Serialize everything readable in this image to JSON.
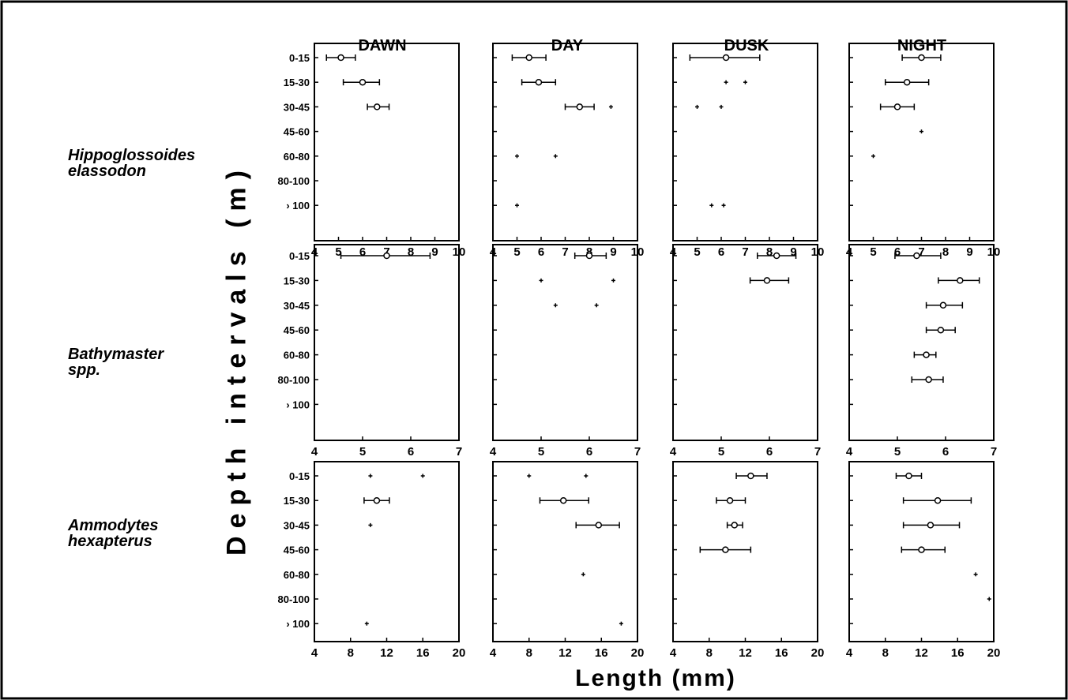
{
  "figure": {
    "periods": [
      "DAWN",
      "DAY",
      "DUSK",
      "NIGHT"
    ],
    "species": [
      {
        "line1": "Hippoglossoides",
        "line2": "elassodon"
      },
      {
        "line1": "Bathymaster",
        "line2": "spp."
      },
      {
        "line1": "Ammodytes",
        "line2": "hexapterus"
      }
    ],
    "ylabel": "Depth intervals (m)",
    "xlabel": "Length (mm)"
  },
  "chart_data": [
    {
      "type": "scatter",
      "subtype": "mean with horizontal range bars",
      "row": "Hippoglossoides elassodon",
      "depth_intervals": [
        "0-15",
        "15-30",
        "30-45",
        "45-60",
        "60-80",
        "80-100",
        "› 100"
      ],
      "xlim": [
        4,
        10
      ],
      "xticks": [
        4,
        5,
        6,
        7,
        8,
        9,
        10
      ],
      "panels": [
        {
          "period": "DAWN",
          "points": [
            {
              "depth": "0-15",
              "mean": 5.1,
              "low": 4.5,
              "high": 5.7
            },
            {
              "depth": "15-30",
              "mean": 6.0,
              "low": 5.2,
              "high": 6.7
            },
            {
              "depth": "30-45",
              "mean": 6.6,
              "low": 6.2,
              "high": 7.1
            }
          ]
        },
        {
          "period": "DAY",
          "points": [
            {
              "depth": "0-15",
              "mean": 5.5,
              "low": 4.8,
              "high": 6.2
            },
            {
              "depth": "15-30",
              "mean": 5.9,
              "low": 5.2,
              "high": 6.6
            },
            {
              "depth": "30-45",
              "mean": 7.6,
              "low": 7.0,
              "high": 8.2
            },
            {
              "depth": "30-45",
              "single": 8.9
            },
            {
              "depth": "60-80",
              "single": 5.0
            },
            {
              "depth": "60-80",
              "single": 6.6
            },
            {
              "depth": "› 100",
              "single": 5.0
            }
          ]
        },
        {
          "period": "DUSK",
          "points": [
            {
              "depth": "0-15",
              "mean": 6.2,
              "low": 4.7,
              "high": 7.6
            },
            {
              "depth": "15-30",
              "single": 6.2
            },
            {
              "depth": "15-30",
              "single": 7.0
            },
            {
              "depth": "30-45",
              "single": 5.0
            },
            {
              "depth": "30-45",
              "single": 6.0
            },
            {
              "depth": "› 100",
              "single": 5.6
            },
            {
              "depth": "› 100",
              "single": 6.1
            }
          ]
        },
        {
          "period": "NIGHT",
          "points": [
            {
              "depth": "0-15",
              "mean": 7.0,
              "low": 6.2,
              "high": 7.8
            },
            {
              "depth": "15-30",
              "mean": 6.4,
              "low": 5.5,
              "high": 7.3
            },
            {
              "depth": "30-45",
              "mean": 6.0,
              "low": 5.3,
              "high": 6.7
            },
            {
              "depth": "45-60",
              "single": 7.0
            },
            {
              "depth": "60-80",
              "single": 5.0
            }
          ]
        }
      ]
    },
    {
      "type": "scatter",
      "subtype": "mean with horizontal range bars",
      "row": "Bathymaster spp.",
      "depth_intervals": [
        "0-15",
        "15-30",
        "30-45",
        "45-60",
        "60-80",
        "80-100",
        "› 100"
      ],
      "xlim": [
        4,
        7
      ],
      "xticks": [
        4,
        5,
        6,
        7
      ],
      "panels": [
        {
          "period": "DAWN",
          "points": [
            {
              "depth": "0-15",
              "mean": 5.5,
              "low": 4.55,
              "high": 6.4
            }
          ]
        },
        {
          "period": "DAY",
          "points": [
            {
              "depth": "0-15",
              "mean": 6.0,
              "low": 5.7,
              "high": 6.35
            },
            {
              "depth": "15-30",
              "single": 5.0
            },
            {
              "depth": "15-30",
              "single": 6.5
            },
            {
              "depth": "30-45",
              "single": 5.3
            },
            {
              "depth": "30-45",
              "single": 6.15
            }
          ]
        },
        {
          "period": "DUSK",
          "points": [
            {
              "depth": "0-15",
              "mean": 6.15,
              "low": 5.75,
              "high": 6.55
            },
            {
              "depth": "15-30",
              "mean": 5.95,
              "low": 5.6,
              "high": 6.4
            }
          ]
        },
        {
          "period": "NIGHT",
          "points": [
            {
              "depth": "0-15",
              "mean": 5.4,
              "low": 4.95,
              "high": 5.9
            },
            {
              "depth": "15-30",
              "mean": 6.3,
              "low": 5.85,
              "high": 6.7
            },
            {
              "depth": "30-45",
              "mean": 5.95,
              "low": 5.6,
              "high": 6.35
            },
            {
              "depth": "45-60",
              "mean": 5.9,
              "low": 5.6,
              "high": 6.2
            },
            {
              "depth": "60-80",
              "mean": 5.6,
              "low": 5.35,
              "high": 5.8
            },
            {
              "depth": "80-100",
              "mean": 5.65,
              "low": 5.3,
              "high": 5.95
            }
          ]
        }
      ]
    },
    {
      "type": "scatter",
      "subtype": "mean with horizontal range bars",
      "row": "Ammodytes hexapterus",
      "depth_intervals": [
        "0-15",
        "15-30",
        "30-45",
        "45-60",
        "60-80",
        "80-100",
        "› 100"
      ],
      "xlim": [
        4,
        20
      ],
      "xticks": [
        4,
        8,
        12,
        16,
        20
      ],
      "panels": [
        {
          "period": "DAWN",
          "points": [
            {
              "depth": "0-15",
              "single": 10.2
            },
            {
              "depth": "0-15",
              "single": 16.0
            },
            {
              "depth": "15-30",
              "mean": 10.9,
              "low": 9.5,
              "high": 12.3
            },
            {
              "depth": "30-45",
              "single": 10.2
            },
            {
              "depth": "› 100",
              "single": 9.8
            }
          ]
        },
        {
          "period": "DAY",
          "points": [
            {
              "depth": "0-15",
              "single": 8.0
            },
            {
              "depth": "0-15",
              "single": 14.3
            },
            {
              "depth": "15-30",
              "mean": 11.8,
              "low": 9.2,
              "high": 14.6
            },
            {
              "depth": "30-45",
              "mean": 15.7,
              "low": 13.2,
              "high": 18.0
            },
            {
              "depth": "60-80",
              "single": 14.0
            },
            {
              "depth": "› 100",
              "single": 18.2
            }
          ]
        },
        {
          "period": "DUSK",
          "points": [
            {
              "depth": "0-15",
              "mean": 12.6,
              "low": 11.0,
              "high": 14.4
            },
            {
              "depth": "15-30",
              "mean": 10.3,
              "low": 8.8,
              "high": 12.0
            },
            {
              "depth": "30-45",
              "mean": 10.8,
              "low": 10.0,
              "high": 11.7
            },
            {
              "depth": "45-60",
              "mean": 9.8,
              "low": 7.0,
              "high": 12.6
            }
          ]
        },
        {
          "period": "NIGHT",
          "points": [
            {
              "depth": "0-15",
              "mean": 10.6,
              "low": 9.2,
              "high": 12.0
            },
            {
              "depth": "15-30",
              "mean": 13.8,
              "low": 10.0,
              "high": 17.5
            },
            {
              "depth": "30-45",
              "mean": 13.0,
              "low": 10.0,
              "high": 16.2
            },
            {
              "depth": "45-60",
              "mean": 12.0,
              "low": 9.8,
              "high": 14.6
            },
            {
              "depth": "60-80",
              "single": 18.0
            },
            {
              "depth": "80-100",
              "single": 19.5
            }
          ]
        }
      ]
    }
  ]
}
